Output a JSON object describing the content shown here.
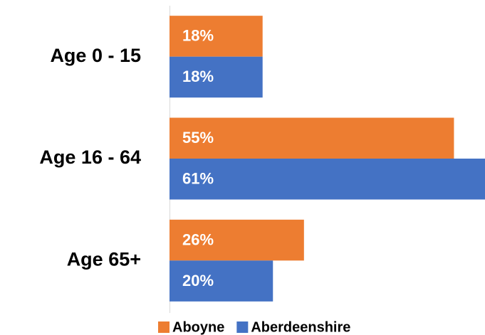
{
  "chart_data": {
    "type": "hbar",
    "categories": [
      "Age 0 - 15",
      "Age 16 - 64",
      "Age 65+"
    ],
    "series": [
      {
        "name": "Aboyne",
        "color": "#ED7D31",
        "values": [
          18,
          55,
          26
        ],
        "value_labels": [
          "18%",
          "55%",
          "26%"
        ]
      },
      {
        "name": "Aberdeenshire",
        "color": "#4472C4",
        "values": [
          18,
          61,
          20
        ],
        "value_labels": [
          "18%",
          "61%",
          "20%"
        ]
      }
    ],
    "xlim": [
      0,
      61
    ],
    "legend": "bottom"
  }
}
